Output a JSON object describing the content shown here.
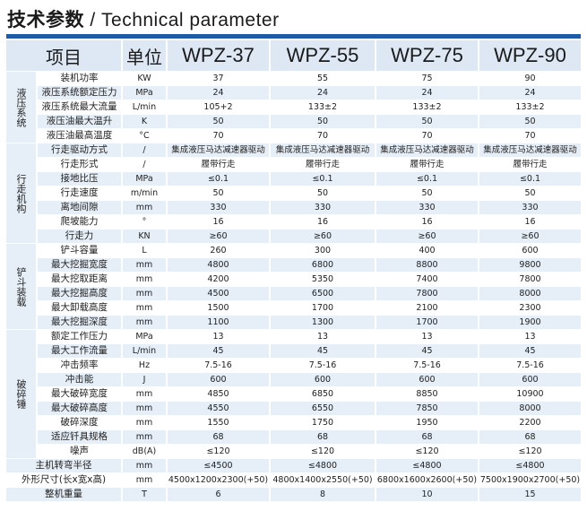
{
  "title": {
    "cn": "技术参数",
    "sep": " / ",
    "en": "Technical parameter"
  },
  "colors": {
    "accent": "#1e5aa8",
    "band": "#e6eef8",
    "header": "#dde8f4"
  },
  "headers": [
    "项目",
    "单位",
    "WPZ-37",
    "WPZ-55",
    "WPZ-75",
    "WPZ-90"
  ],
  "groups": [
    {
      "label": "液压系统",
      "start": 0,
      "span": 5
    },
    {
      "label": "行走机构",
      "start": 5,
      "span": 7
    },
    {
      "label": "铲斗装载",
      "start": 12,
      "span": 6
    },
    {
      "label": "破碎锤",
      "start": 18,
      "span": 9
    }
  ],
  "rows": [
    {
      "item": "装机功率",
      "unit": "KW",
      "values": [
        "37",
        "55",
        "75",
        "90"
      ]
    },
    {
      "item": "液压系统额定压力",
      "unit": "MPa",
      "values": [
        "24",
        "24",
        "24",
        "24"
      ]
    },
    {
      "item": "液压系统最大流量",
      "unit": "L/min",
      "values": [
        "105+2",
        "133±2",
        "133±2",
        "133±2"
      ]
    },
    {
      "item": "液压油最大温升",
      "unit": "K",
      "values": [
        "50",
        "50",
        "50",
        "50"
      ]
    },
    {
      "item": "液压油最高温度",
      "unit": "°C",
      "values": [
        "70",
        "70",
        "70",
        "70"
      ]
    },
    {
      "item": "行走驱动方式",
      "unit": "/",
      "values": [
        "集成液压马达减速器驱动",
        "集成液压马达减速器驱动",
        "集成液压马达减速器驱动",
        "集成液压马达减速器驱动"
      ]
    },
    {
      "item": "行走形式",
      "unit": "/",
      "values": [
        "履带行走",
        "履带行走",
        "履带行走",
        "履带行走"
      ]
    },
    {
      "item": "接地比压",
      "unit": "MPa",
      "values": [
        "≤0.1",
        "≤0.1",
        "≤0.1",
        "≤0.1"
      ]
    },
    {
      "item": "行走速度",
      "unit": "m/min",
      "values": [
        "50",
        "50",
        "50",
        "50"
      ]
    },
    {
      "item": "离地间隙",
      "unit": "mm",
      "values": [
        "330",
        "330",
        "330",
        "330"
      ]
    },
    {
      "item": "爬坡能力",
      "unit": "°",
      "values": [
        "16",
        "16",
        "16",
        "16"
      ]
    },
    {
      "item": "行走力",
      "unit": "KN",
      "values": [
        "≥60",
        "≥60",
        "≥60",
        "≥60"
      ]
    },
    {
      "item": "铲斗容量",
      "unit": "L",
      "values": [
        "260",
        "300",
        "400",
        "600"
      ]
    },
    {
      "item": "最大挖掘宽度",
      "unit": "mm",
      "values": [
        "4800",
        "6800",
        "8800",
        "9800"
      ]
    },
    {
      "item": "最大挖取距离",
      "unit": "mm",
      "values": [
        "4200",
        "5350",
        "7400",
        "7800"
      ]
    },
    {
      "item": "最大挖掘高度",
      "unit": "mm",
      "values": [
        "4500",
        "6500",
        "7800",
        "8000"
      ]
    },
    {
      "item": "最大卸载高度",
      "unit": "mm",
      "values": [
        "1500",
        "1700",
        "2100",
        "2300"
      ]
    },
    {
      "item": "最大挖掘深度",
      "unit": "mm",
      "values": [
        "1100",
        "1300",
        "1700",
        "1900"
      ]
    },
    {
      "item": "额定工作压力",
      "unit": "MPa",
      "values": [
        "13",
        "13",
        "13",
        "13"
      ]
    },
    {
      "item": "最大工作流量",
      "unit": "L/min",
      "values": [
        "45",
        "45",
        "45",
        "45"
      ]
    },
    {
      "item": "冲击频率",
      "unit": "Hz",
      "values": [
        "7.5-16",
        "7.5-16",
        "7.5-16",
        "7.5-16"
      ]
    },
    {
      "item": "冲击能",
      "unit": "J",
      "values": [
        "600",
        "600",
        "600",
        "600"
      ]
    },
    {
      "item": "最大破碎宽度",
      "unit": "mm",
      "values": [
        "4850",
        "6850",
        "8850",
        "10900"
      ]
    },
    {
      "item": "最大破碎高度",
      "unit": "mm",
      "values": [
        "4550",
        "6550",
        "7850",
        "8000"
      ]
    },
    {
      "item": "破碎深度",
      "unit": "mm",
      "values": [
        "1550",
        "1750",
        "1950",
        "2200"
      ]
    },
    {
      "item": "适应钎具规格",
      "unit": "mm",
      "values": [
        "68",
        "68",
        "68",
        "68"
      ]
    },
    {
      "item": "噪声",
      "unit": "dB(A)",
      "values": [
        "≤120",
        "≤120",
        "≤120",
        "≤120"
      ]
    },
    {
      "item": "主机转弯半径",
      "unit": "mm",
      "values": [
        "≤4500",
        "≤4800",
        "≤4800",
        "≤4800"
      ]
    },
    {
      "item": "外形尺寸(长x宽x高)",
      "unit": "mm",
      "values": [
        "4500x1200x2300(+50)",
        "4800x1400x2550(+50)",
        "6800x1600x2600(+50)",
        "7500x1900x2700(+50)"
      ]
    },
    {
      "item": "整机重量",
      "unit": "T",
      "values": [
        "6",
        "8",
        "10",
        "15"
      ]
    }
  ]
}
